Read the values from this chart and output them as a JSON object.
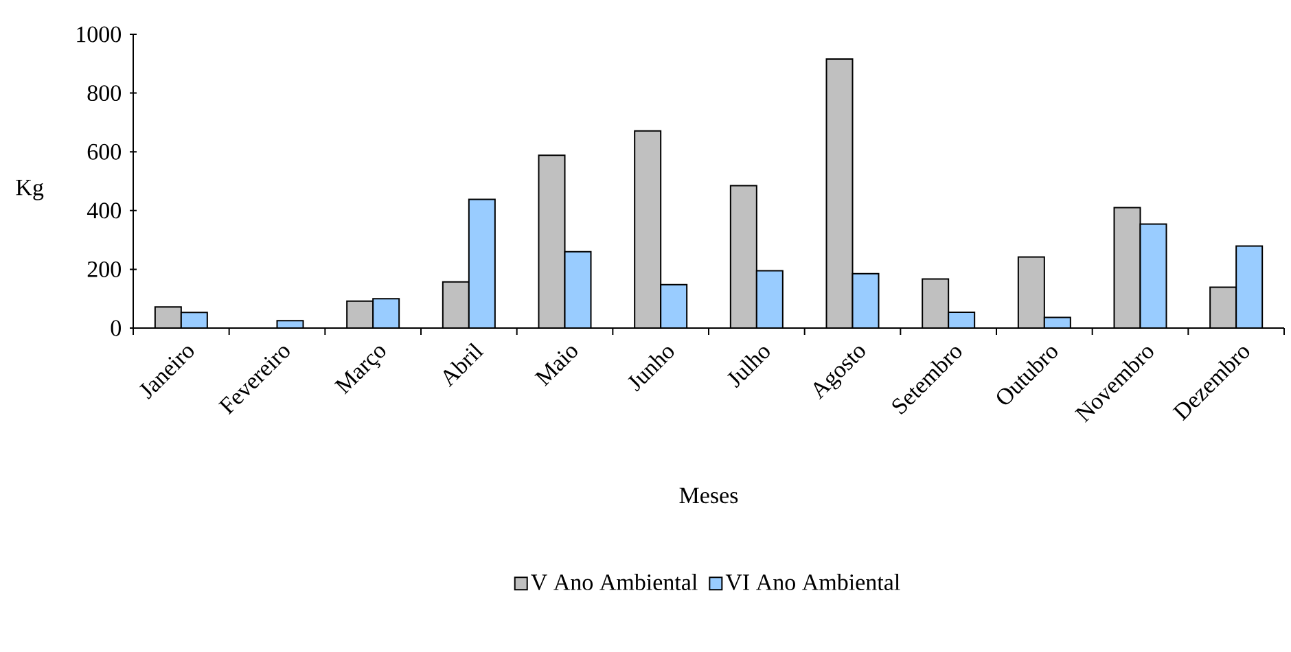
{
  "chart_data": {
    "type": "bar",
    "xlabel": "Meses",
    "ylabel": "Kg",
    "categories": [
      "Janeiro",
      "Fevereiro",
      "Março",
      "Abril",
      "Maio",
      "Junho",
      "Julho",
      "Agosto",
      "Setembro",
      "Outubro",
      "Novembro",
      "Dezembro"
    ],
    "series": [
      {
        "name": "V Ano Ambiental",
        "color": "#c0c0c0",
        "values": [
          72,
          null,
          92,
          157,
          588,
          671,
          485,
          916,
          167,
          242,
          410,
          139
        ]
      },
      {
        "name": "VI Ano Ambiental",
        "color": "#99ccff",
        "values": [
          53,
          25,
          100,
          438,
          260,
          148,
          195,
          185,
          54,
          36,
          354,
          279
        ]
      }
    ],
    "ylim": [
      0,
      1000
    ],
    "yticks": [
      0,
      200,
      400,
      600,
      800,
      1000
    ],
    "grid": false,
    "legend": "bottom"
  }
}
